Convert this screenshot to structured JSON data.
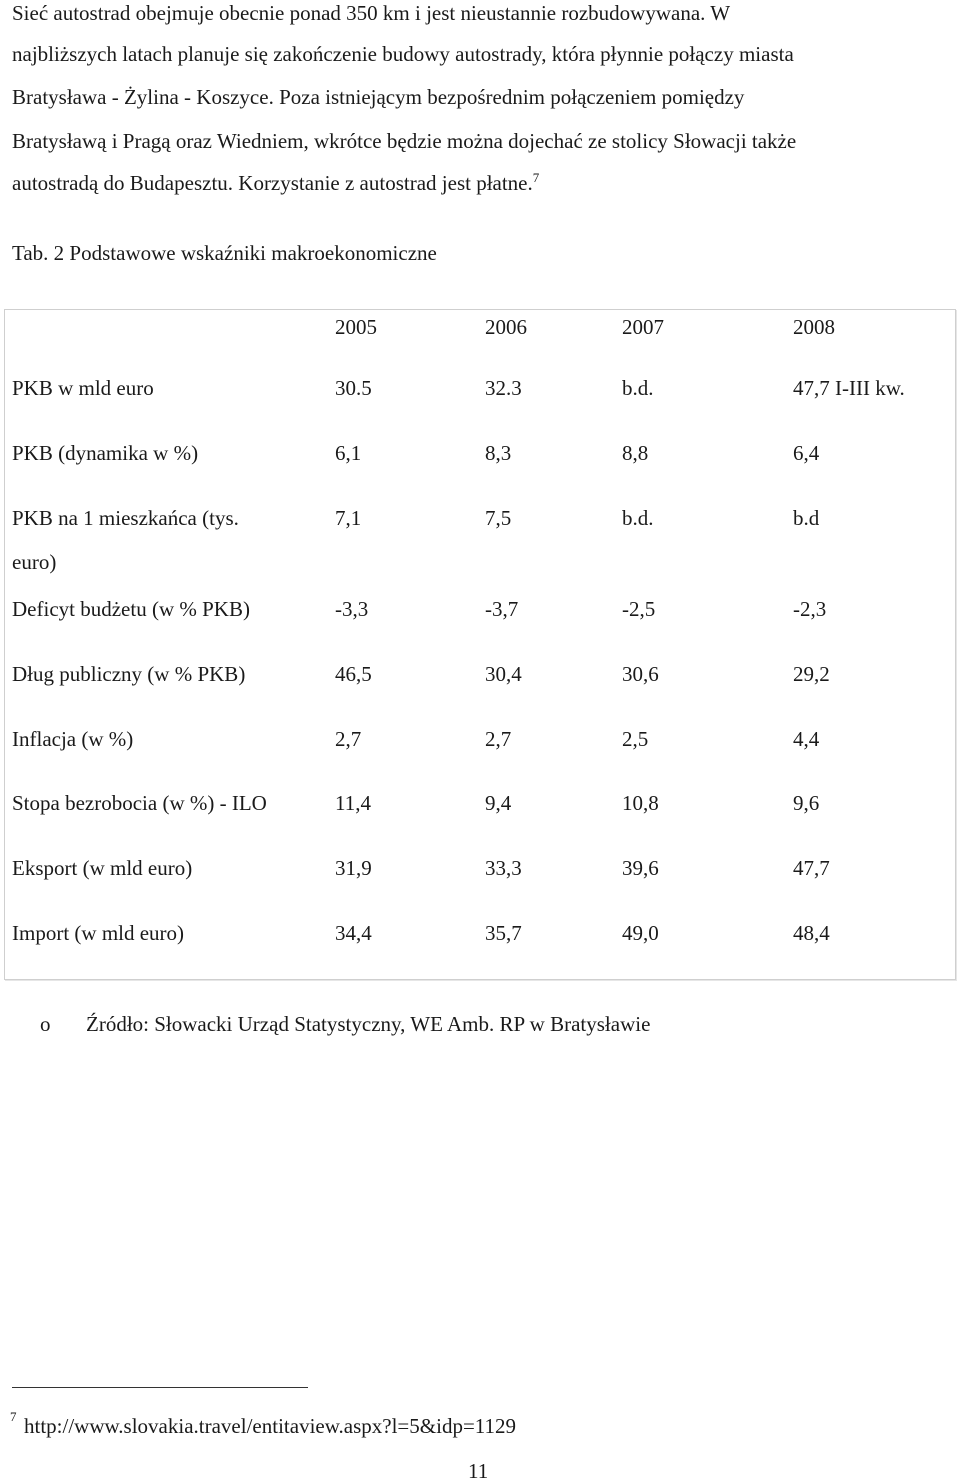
{
  "paragraph": {
    "line1": "Sieć autostrad obejmuje obecnie ponad 350 km i jest nieustannie rozbudowywana. W",
    "line2": "najbliższych latach  planuje się zakończenie budowy autostrady, która płynnie połączy miasta",
    "line3": "Bratysława - Żylina - Koszyce. Poza istniejącym bezpośrednim połączeniem pomiędzy",
    "line4": "Bratysławą i Pragą oraz Wiedniem, wkrótce będzie można dojechać ze stolicy Słowacji także",
    "line5": "autostradą  do Budapesztu. Korzystanie z autostrad jest płatne.",
    "footnote_ref": "7"
  },
  "table": {
    "caption": "Tab. 2 Podstawowe wskaźniki makroekonomiczne",
    "years": [
      "2005",
      "2006",
      "2007",
      "2008"
    ],
    "rows": [
      {
        "label": "PKB w mld euro",
        "values": [
          "30.5",
          "32.3",
          "b.d.",
          "47,7 I-III kw."
        ]
      },
      {
        "label": "PKB (dynamika w %)",
        "values": [
          "6,1",
          "8,3",
          "8,8",
          "6,4"
        ]
      },
      {
        "label": "PKB na 1 mieszkańca (tys.",
        "label_cont": "euro)",
        "values": [
          "7,1",
          "7,5",
          "b.d.",
          "b.d"
        ]
      },
      {
        "label": "Deficyt budżetu (w % PKB)",
        "values": [
          "-3,3",
          "-3,7",
          "-2,5",
          "-2,3"
        ]
      },
      {
        "label": "Dług publiczny (w % PKB)",
        "values": [
          "46,5",
          "30,4",
          "30,6",
          "29,2"
        ]
      },
      {
        "label": "Inflacja (w %)",
        "values": [
          "2,7",
          "2,7",
          "2,5",
          "4,4"
        ]
      },
      {
        "label": "Stopa bezrobocia (w %) - ILO",
        "values": [
          "11,4",
          "9,4",
          "10,8",
          "9,6"
        ]
      },
      {
        "label": "Eksport (w mld euro)",
        "values": [
          "31,9",
          "33,3",
          "39,6",
          "47,7"
        ]
      },
      {
        "label": "Import (w mld euro)",
        "values": [
          "34,4",
          "35,7",
          "49,0",
          "48,4"
        ]
      }
    ]
  },
  "source": {
    "bullet": "o",
    "text": "Źródło:  Słowacki Urząd Statystyczny, WE Amb. RP w Bratysławie"
  },
  "footnote": {
    "mark": "7",
    "text": "http://www.slovakia.travel/entitaview.aspx?l=5&idp=1129"
  },
  "page_number": "11"
}
